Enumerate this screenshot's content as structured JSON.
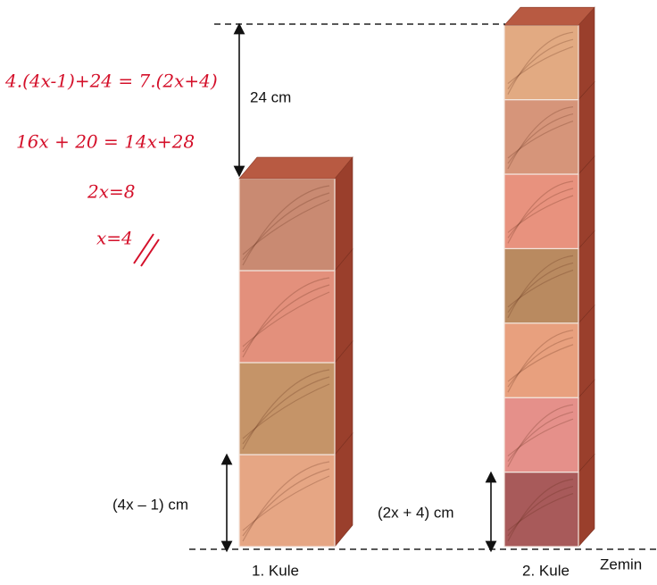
{
  "work": {
    "steps": [
      "4.(4x-1)+24 = 7.(2x+4)",
      "16x + 20 = 14x+28",
      "2x=8",
      "x=4"
    ]
  },
  "labels": {
    "gap": "24 cm",
    "cube1_height": "(4x – 1) cm",
    "cube2_height": "(2x + 4) cm",
    "tower1": "1. Kule",
    "tower2": "2. Kule",
    "ground": "Zemin"
  }
}
